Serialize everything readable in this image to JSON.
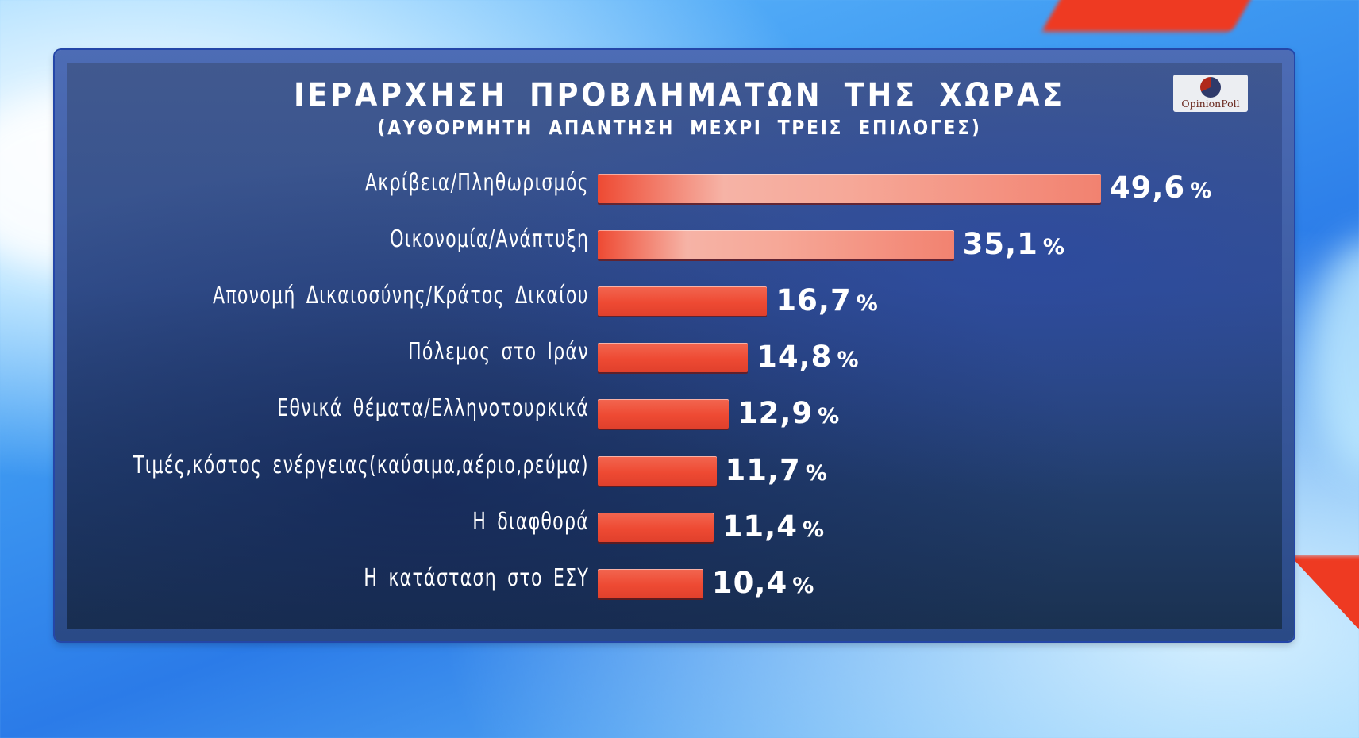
{
  "title": "ΙΕΡΑΡΧΗΣΗ ΠΡΟΒΛΗΜΑΤΩΝ ΤΗΣ ΧΩΡΑΣ",
  "subtitle": "(ΑΥΘΟΡΜΗΤΗ ΑΠΑΝΤΗΣΗ ΜΕΧΡΙ ΤΡΕΙΣ ΕΠΙΛΟΓΕΣ)",
  "logo": {
    "text": "OpinionPoll",
    "icon": "pie-chart-icon"
  },
  "colors": {
    "bar": "#ee4a33",
    "bar_highlight": "#f6b3a6",
    "panel": "#34508c",
    "text": "#ffffff"
  },
  "rows": [
    {
      "label": "Ακρίβεια/Πληθωρισμός",
      "value": "49,6",
      "pct": "%"
    },
    {
      "label": "Οικονομία/Ανάπτυξη",
      "value": "35,1",
      "pct": "%"
    },
    {
      "label": "Απονομή Δικαιοσύνης/Κράτος Δικαίου",
      "value": "16,7",
      "pct": "%"
    },
    {
      "label": "Πόλεμος στο Ιράν",
      "value": "14,8",
      "pct": "%"
    },
    {
      "label": "Εθνικά θέματα/Ελληνοτουρκικά",
      "value": "12,9",
      "pct": "%"
    },
    {
      "label": "Τιμές,κόστος ενέργειας(καύσιμα,αέριο,ρεύμα)",
      "value": "11,7",
      "pct": "%"
    },
    {
      "label": "Η διαφθορά",
      "value": "11,4",
      "pct": "%"
    },
    {
      "label": "Η κατάσταση στο ΕΣΥ",
      "value": "10,4",
      "pct": "%"
    }
  ],
  "chart_data": {
    "type": "bar",
    "orientation": "horizontal",
    "title": "ΙΕΡΑΡΧΗΣΗ ΠΡΟΒΛΗΜΑΤΩΝ ΤΗΣ ΧΩΡΑΣ",
    "subtitle": "(ΑΥΘΟΡΜΗΤΗ ΑΠΑΝΤΗΣΗ ΜΕΧΡΙ ΤΡΕΙΣ ΕΠΙΛΟΓΕΣ)",
    "categories": [
      "Ακρίβεια/Πληθωρισμός",
      "Οικονομία/Ανάπτυξη",
      "Απονομή Δικαιοσύνης/Κράτος Δικαίου",
      "Πόλεμος στο Ιράν",
      "Εθνικά θέματα/Ελληνοτουρκικά",
      "Τιμές,κόστος ενέργειας(καύσιμα,αέριο,ρεύμα)",
      "Η διαφθορά",
      "Η κατάσταση στο ΕΣΥ"
    ],
    "values": [
      49.6,
      35.1,
      16.7,
      14.8,
      12.9,
      11.7,
      11.4,
      10.4
    ],
    "unit": "%",
    "xlabel": "",
    "ylabel": "",
    "grid": false,
    "legend": null,
    "source_logo": "OpinionPoll"
  }
}
